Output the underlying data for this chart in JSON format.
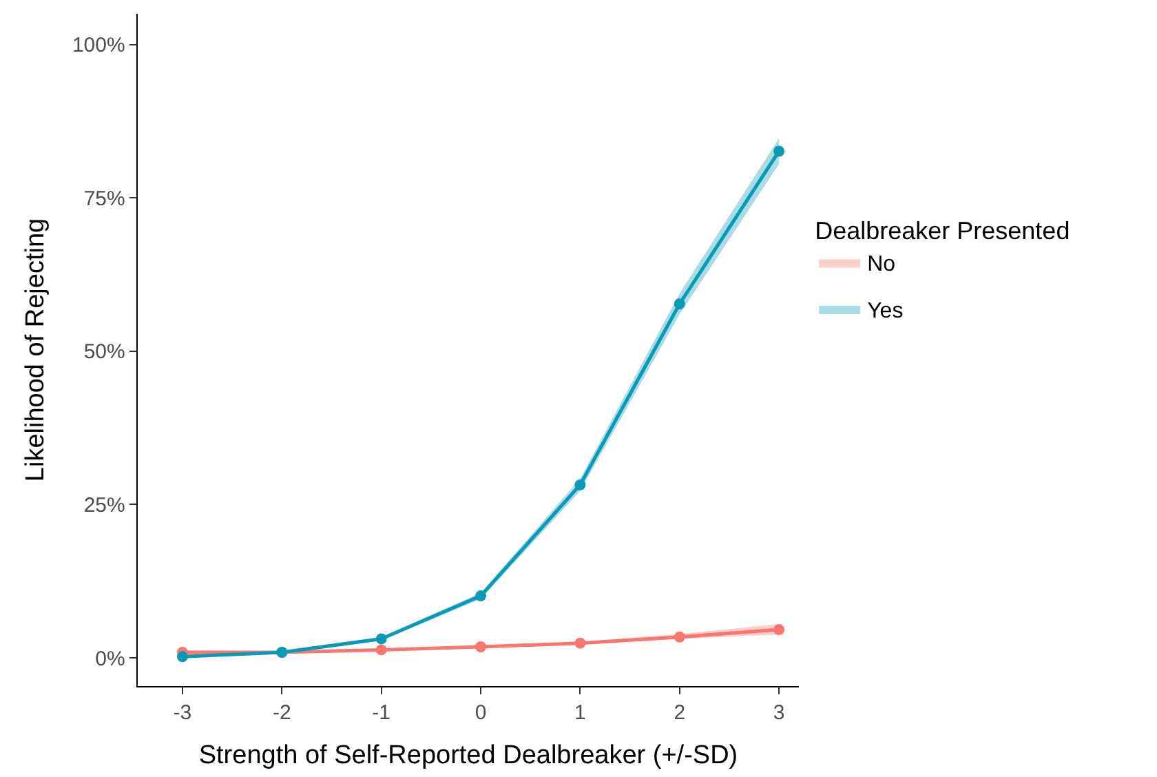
{
  "chart_data": {
    "type": "line",
    "xlabel": "Strength of Self-Reported Dealbreaker (+/-SD)",
    "ylabel": "Likelihood of Rejecting",
    "legend_title": "Dealbreaker Presented",
    "legend": "right",
    "marker": "circle",
    "line_style": "solid",
    "x": [
      -3,
      -2,
      -1,
      0,
      1,
      2,
      3
    ],
    "xlim": [
      -3.45,
      3.2
    ],
    "xticks": [
      -3,
      -2,
      -1,
      0,
      1,
      2,
      3
    ],
    "ylim": [
      -4.6,
      105
    ],
    "yticks": [
      {
        "value": 0,
        "label": "0%"
      },
      {
        "value": 25,
        "label": "25%"
      },
      {
        "value": 50,
        "label": "50%"
      },
      {
        "value": 75,
        "label": "75%"
      },
      {
        "value": 100,
        "label": "100%"
      }
    ],
    "series": [
      {
        "name": "No",
        "color": "#f8766d",
        "values": [
          0.9,
          0.9,
          1.3,
          1.8,
          2.4,
          3.4,
          4.6
        ],
        "lower": [
          0.4,
          0.7,
          1.1,
          1.6,
          2.2,
          3.1,
          3.8
        ],
        "upper": [
          1.2,
          1.1,
          1.4,
          2.0,
          2.6,
          3.9,
          5.5
        ]
      },
      {
        "name": "Yes",
        "color": "#0a9ab5",
        "values": [
          0.2,
          0.9,
          3.1,
          10.1,
          28.2,
          57.7,
          82.6
        ],
        "lower": [
          0.1,
          0.7,
          2.8,
          9.6,
          27.2,
          56.0,
          80.5
        ],
        "upper": [
          0.4,
          1.1,
          3.4,
          10.6,
          29.2,
          59.4,
          84.7
        ]
      }
    ]
  }
}
